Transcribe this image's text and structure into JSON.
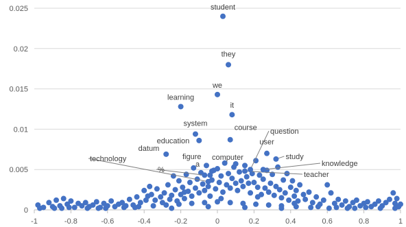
{
  "chart_data": {
    "type": "scatter",
    "title": "",
    "xlabel": "",
    "ylabel": "",
    "xlim": [
      -1,
      1
    ],
    "ylim": [
      0,
      0.025
    ],
    "x_ticks": [
      "-1",
      "-0.8",
      "-0.6",
      "-0.4",
      "-0.2",
      "0",
      "0.2",
      "0.4",
      "0.6",
      "0.8",
      "1"
    ],
    "y_ticks": [
      "0",
      "0.005",
      "0.01",
      "0.015",
      "0.02",
      "0.025"
    ],
    "grid": true,
    "point_color": "#4472c4",
    "labeled_points": [
      {
        "label": "student",
        "x": 0.03,
        "y": 0.024
      },
      {
        "label": "they",
        "x": 0.06,
        "y": 0.018
      },
      {
        "label": "we",
        "x": 0.0,
        "y": 0.0143
      },
      {
        "label": "learning",
        "x": -0.2,
        "y": 0.0128
      },
      {
        "label": "it",
        "x": 0.08,
        "y": 0.0118
      },
      {
        "label": "system",
        "x": -0.12,
        "y": 0.0094
      },
      {
        "label": "education",
        "x": -0.1,
        "y": 0.0086
      },
      {
        "label": "course",
        "x": 0.07,
        "y": 0.0087
      },
      {
        "label": "question",
        "x": 0.18,
        "y": 0.005
      },
      {
        "label": "user",
        "x": 0.27,
        "y": 0.007
      },
      {
        "label": "study",
        "x": 0.32,
        "y": 0.0063
      },
      {
        "label": "datum",
        "x": -0.28,
        "y": 0.0069
      },
      {
        "label": "figure",
        "x": -0.03,
        "y": 0.0048
      },
      {
        "label": "computer",
        "x": 0.1,
        "y": 0.0057
      },
      {
        "label": "technology",
        "x": -0.05,
        "y": 0.0035
      },
      {
        "label": "knowledge",
        "x": 0.25,
        "y": 0.005
      },
      {
        "label": "a",
        "x": -0.04,
        "y": 0.0043
      },
      {
        "label": "%",
        "x": -0.07,
        "y": 0.0043
      },
      {
        "label": "teacher",
        "x": 0.15,
        "y": 0.0048
      }
    ],
    "cloud_points": [
      [
        -0.98,
        0.0006
      ],
      [
        -0.95,
        0.0003
      ],
      [
        -0.92,
        0.0009
      ],
      [
        -0.9,
        0.0004
      ],
      [
        -0.88,
        0.0012
      ],
      [
        -0.86,
        0.0005
      ],
      [
        -0.84,
        0.0014
      ],
      [
        -0.82,
        0.0007
      ],
      [
        -0.8,
        0.0011
      ],
      [
        -0.78,
        0.0003
      ],
      [
        -0.76,
        0.0008
      ],
      [
        -0.74,
        0.0005
      ],
      [
        -0.72,
        0.0009
      ],
      [
        -0.7,
        0.0004
      ],
      [
        -0.68,
        0.0006
      ],
      [
        -0.66,
        0.001
      ],
      [
        -0.64,
        0.0003
      ],
      [
        -0.62,
        0.0008
      ],
      [
        -0.6,
        0.0005
      ],
      [
        -0.58,
        0.0011
      ],
      [
        -0.56,
        0.0004
      ],
      [
        -0.54,
        0.0007
      ],
      [
        -0.52,
        0.0009
      ],
      [
        -0.5,
        0.0005
      ],
      [
        -0.48,
        0.0013
      ],
      [
        -0.46,
        0.0006
      ],
      [
        -0.44,
        0.0016
      ],
      [
        -0.42,
        0.0009
      ],
      [
        -0.4,
        0.0024
      ],
      [
        -0.39,
        0.0012
      ],
      [
        -0.37,
        0.0029
      ],
      [
        -0.36,
        0.0019
      ],
      [
        -0.34,
        0.0012
      ],
      [
        -0.33,
        0.0026
      ],
      [
        -0.31,
        0.0016
      ],
      [
        -0.3,
        0.0009
      ],
      [
        -0.29,
        0.0021
      ],
      [
        -0.27,
        0.0031
      ],
      [
        -0.26,
        0.0013
      ],
      [
        -0.25,
        0.0018
      ],
      [
        -0.24,
        0.0042
      ],
      [
        -0.23,
        0.0025
      ],
      [
        -0.22,
        0.0011
      ],
      [
        -0.21,
        0.0036
      ],
      [
        -0.2,
        0.0019
      ],
      [
        -0.19,
        0.0028
      ],
      [
        -0.18,
        0.0014
      ],
      [
        -0.17,
        0.0044
      ],
      [
        -0.16,
        0.0023
      ],
      [
        -0.15,
        0.0034
      ],
      [
        -0.14,
        0.0017
      ],
      [
        -0.13,
        0.0052
      ],
      [
        -0.12,
        0.0027
      ],
      [
        -0.11,
        0.0038
      ],
      [
        -0.1,
        0.0021
      ],
      [
        -0.09,
        0.0046
      ],
      [
        -0.08,
        0.0032
      ],
      [
        -0.07,
        0.0024
      ],
      [
        -0.06,
        0.0055
      ],
      [
        -0.05,
        0.0029
      ],
      [
        -0.04,
        0.0017
      ],
      [
        -0.03,
        0.0037
      ],
      [
        -0.02,
        0.0049
      ],
      [
        -0.01,
        0.0026
      ],
      [
        0.0,
        0.0051
      ],
      [
        0.01,
        0.0034
      ],
      [
        0.02,
        0.0042
      ],
      [
        0.03,
        0.0022
      ],
      [
        0.04,
        0.0058
      ],
      [
        0.05,
        0.0031
      ],
      [
        0.06,
        0.0045
      ],
      [
        0.07,
        0.0027
      ],
      [
        0.08,
        0.0039
      ],
      [
        0.09,
        0.0053
      ],
      [
        0.1,
        0.0033
      ],
      [
        0.11,
        0.0024
      ],
      [
        0.12,
        0.0047
      ],
      [
        0.13,
        0.0036
      ],
      [
        0.14,
        0.0029
      ],
      [
        0.15,
        0.0055
      ],
      [
        0.16,
        0.0041
      ],
      [
        0.17,
        0.0033
      ],
      [
        0.18,
        0.0021
      ],
      [
        0.19,
        0.0045
      ],
      [
        0.2,
        0.0034
      ],
      [
        0.21,
        0.0061
      ],
      [
        0.22,
        0.0028
      ],
      [
        0.23,
        0.0043
      ],
      [
        0.24,
        0.0019
      ],
      [
        0.25,
        0.0038
      ],
      [
        0.26,
        0.0027
      ],
      [
        0.27,
        0.0049
      ],
      [
        0.28,
        0.0022
      ],
      [
        0.29,
        0.0033
      ],
      [
        0.3,
        0.0044
      ],
      [
        0.31,
        0.0018
      ],
      [
        0.32,
        0.0029
      ],
      [
        0.33,
        0.0053
      ],
      [
        0.34,
        0.0025
      ],
      [
        0.35,
        0.0015
      ],
      [
        0.36,
        0.0037
      ],
      [
        0.37,
        0.0021
      ],
      [
        0.38,
        0.0045
      ],
      [
        0.39,
        0.0012
      ],
      [
        0.4,
        0.0028
      ],
      [
        0.41,
        0.0036
      ],
      [
        0.42,
        0.0017
      ],
      [
        0.43,
        0.0024
      ],
      [
        0.44,
        0.0011
      ],
      [
        0.45,
        0.0031
      ],
      [
        0.47,
        0.0019
      ],
      [
        0.48,
        0.0013
      ],
      [
        0.5,
        0.0022
      ],
      [
        0.52,
        0.0009
      ],
      [
        0.54,
        0.0016
      ],
      [
        0.56,
        0.0007
      ],
      [
        0.58,
        0.0012
      ],
      [
        0.6,
        0.0031
      ],
      [
        0.62,
        0.0021
      ],
      [
        0.64,
        0.0008
      ],
      [
        0.66,
        0.0013
      ],
      [
        0.68,
        0.0006
      ],
      [
        0.7,
        0.0011
      ],
      [
        0.72,
        0.0004
      ],
      [
        0.74,
        0.0009
      ],
      [
        0.76,
        0.0012
      ],
      [
        0.78,
        0.0005
      ],
      [
        0.8,
        0.0008
      ],
      [
        0.82,
        0.001
      ],
      [
        0.84,
        0.0004
      ],
      [
        0.86,
        0.0007
      ],
      [
        0.88,
        0.0011
      ],
      [
        0.9,
        0.0005
      ],
      [
        0.92,
        0.0009
      ],
      [
        0.94,
        0.0013
      ],
      [
        0.96,
        0.0021
      ],
      [
        0.97,
        0.0008
      ],
      [
        0.98,
        0.0014
      ],
      [
        0.99,
        0.0004
      ],
      [
        1.0,
        0.0007
      ],
      [
        -0.97,
        0.0002
      ],
      [
        -0.89,
        0.0002
      ],
      [
        -0.81,
        0.0003
      ],
      [
        -0.71,
        0.0002
      ],
      [
        -0.61,
        0.0002
      ],
      [
        -0.51,
        0.0003
      ],
      [
        -0.43,
        0.0004
      ],
      [
        -0.35,
        0.0005
      ],
      [
        -0.28,
        0.0006
      ],
      [
        -0.21,
        0.0007
      ],
      [
        -0.14,
        0.0008
      ],
      [
        -0.07,
        0.0009
      ],
      [
        0.0,
        0.001
      ],
      [
        0.07,
        0.0009
      ],
      [
        0.14,
        0.0008
      ],
      [
        0.21,
        0.0007
      ],
      [
        0.28,
        0.0006
      ],
      [
        0.35,
        0.0005
      ],
      [
        0.43,
        0.0004
      ],
      [
        0.51,
        0.0003
      ],
      [
        0.61,
        0.0002
      ],
      [
        0.71,
        0.0002
      ],
      [
        0.81,
        0.0003
      ],
      [
        0.89,
        0.0002
      ],
      [
        0.97,
        0.0002
      ],
      [
        -0.38,
        0.0017
      ],
      [
        -0.18,
        0.0022
      ],
      [
        0.02,
        0.0014
      ],
      [
        0.22,
        0.0016
      ],
      [
        0.42,
        0.0008
      ],
      [
        -0.45,
        0.0003
      ],
      [
        -0.25,
        0.0002
      ],
      [
        -0.05,
        0.0004
      ],
      [
        0.15,
        0.0003
      ],
      [
        0.35,
        0.0002
      ],
      [
        0.55,
        0.0004
      ],
      [
        0.75,
        0.0002
      ],
      [
        -0.65,
        0.0002
      ],
      [
        -0.85,
        0.0002
      ],
      [
        0.65,
        0.0003
      ]
    ]
  }
}
